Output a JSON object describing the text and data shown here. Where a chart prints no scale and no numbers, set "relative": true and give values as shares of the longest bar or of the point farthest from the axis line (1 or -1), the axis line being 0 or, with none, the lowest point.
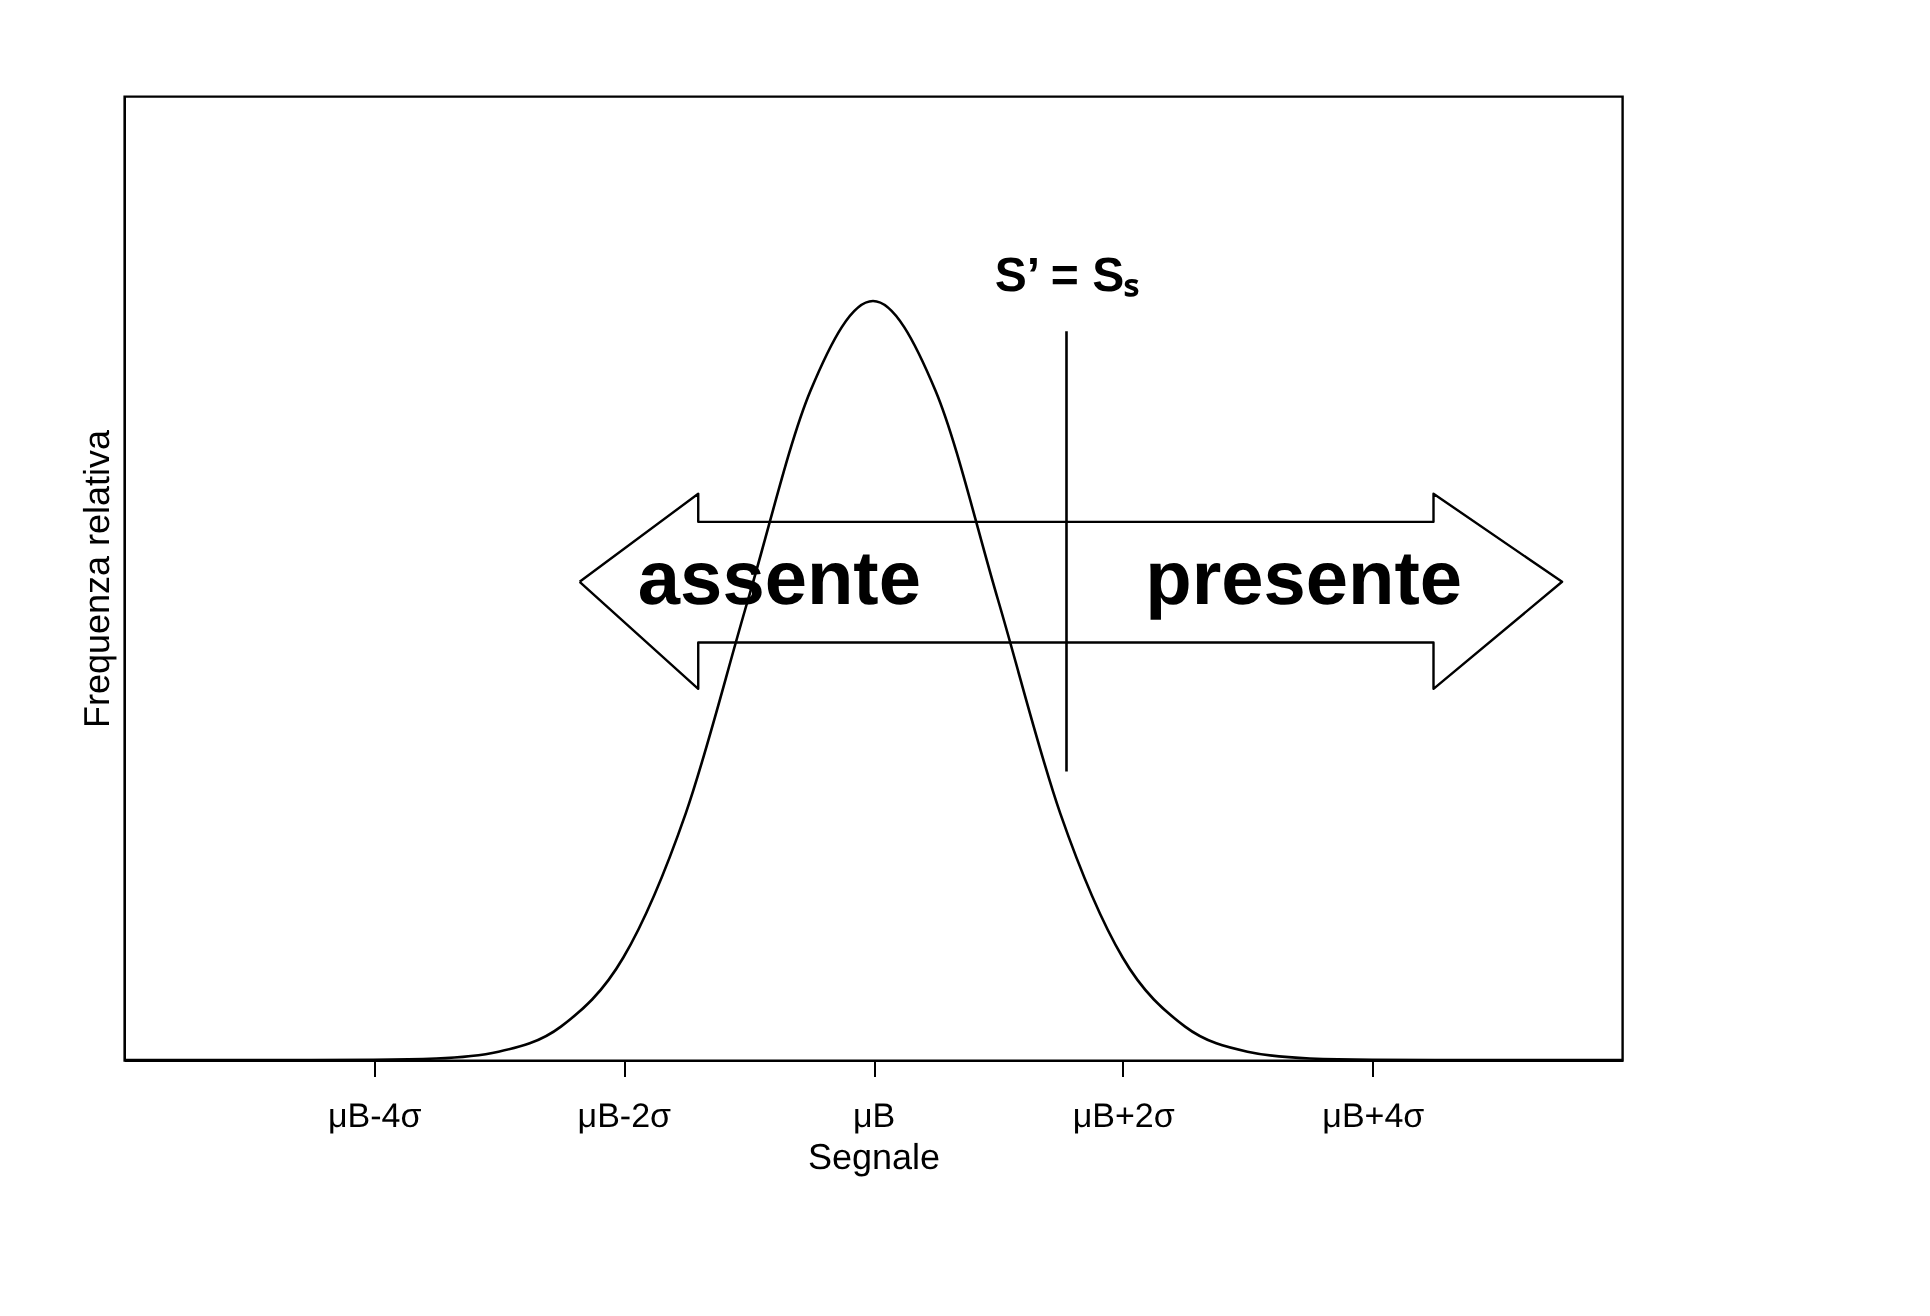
{
  "chart_data": {
    "type": "line",
    "relative": true,
    "xlabel": "Segnale",
    "ylabel": "Frequenza relativa",
    "categories": [
      null,
      null,
      null,
      null,
      "μB-4σ",
      null,
      null,
      null,
      "μB-2σ",
      null,
      null,
      null,
      "μB",
      null,
      null,
      null,
      "μB+2σ",
      null,
      null,
      null,
      "μB+4σ",
      null,
      null,
      null,
      null
    ],
    "series": [
      {
        "color": "#000000",
        "values": [
          0,
          0,
          0,
          0,
          0.0003,
          0.002,
          0.011,
          0.044,
          0.135,
          0.325,
          0.607,
          0.882,
          1,
          0.882,
          0.607,
          0.325,
          0.135,
          0.044,
          0.011,
          0.002,
          0.0003,
          0,
          0,
          0,
          0
        ]
      }
    ],
    "annotations": [
      "S’ = Sₛ",
      "assente",
      "presente"
    ],
    "grid": false
  }
}
